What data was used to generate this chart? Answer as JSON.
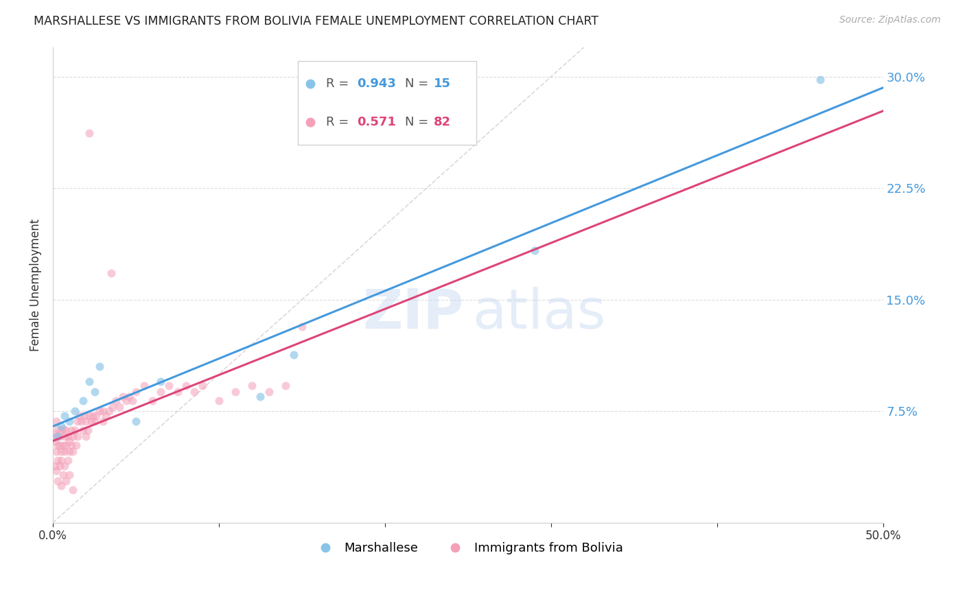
{
  "title": "MARSHALLESE VS IMMIGRANTS FROM BOLIVIA FEMALE UNEMPLOYMENT CORRELATION CHART",
  "source": "Source: ZipAtlas.com",
  "ylabel": "Female Unemployment",
  "watermark_zip": "ZIP",
  "watermark_atlas": "atlas",
  "xlim": [
    0,
    0.5
  ],
  "ylim": [
    0,
    0.32
  ],
  "color_blue": "#89c4e8",
  "color_pink": "#f4a0b8",
  "color_line_blue": "#4499dd",
  "color_line_pink": "#dd4477",
  "color_diag": "#ccbbbb",
  "legend_r1": "0.943",
  "legend_n1": "15",
  "legend_r2": "0.571",
  "legend_n2": "82",
  "marsh_x": [
    0.003,
    0.005,
    0.007,
    0.01,
    0.013,
    0.018,
    0.022,
    0.025,
    0.028,
    0.05,
    0.065,
    0.125,
    0.145,
    0.29,
    0.462
  ],
  "marsh_y": [
    0.058,
    0.065,
    0.072,
    0.068,
    0.075,
    0.082,
    0.095,
    0.088,
    0.105,
    0.068,
    0.095,
    0.085,
    0.113,
    0.183,
    0.298
  ],
  "boli_x": [
    0.001,
    0.001,
    0.002,
    0.002,
    0.002,
    0.003,
    0.003,
    0.003,
    0.004,
    0.004,
    0.005,
    0.005,
    0.005,
    0.006,
    0.006,
    0.007,
    0.007,
    0.008,
    0.008,
    0.009,
    0.009,
    0.01,
    0.01,
    0.011,
    0.011,
    0.012,
    0.012,
    0.013,
    0.014,
    0.015,
    0.015,
    0.016,
    0.017,
    0.018,
    0.019,
    0.02,
    0.02,
    0.021,
    0.022,
    0.023,
    0.024,
    0.025,
    0.026,
    0.028,
    0.03,
    0.03,
    0.032,
    0.034,
    0.036,
    0.038,
    0.04,
    0.042,
    0.044,
    0.046,
    0.048,
    0.05,
    0.055,
    0.06,
    0.065,
    0.07,
    0.075,
    0.08,
    0.085,
    0.09,
    0.1,
    0.11,
    0.12,
    0.13,
    0.14,
    0.15,
    0.001,
    0.002,
    0.003,
    0.004,
    0.005,
    0.006,
    0.007,
    0.008,
    0.01,
    0.012,
    0.022,
    0.035
  ],
  "boli_y": [
    0.055,
    0.06,
    0.048,
    0.058,
    0.068,
    0.042,
    0.052,
    0.063,
    0.052,
    0.058,
    0.042,
    0.048,
    0.062,
    0.052,
    0.063,
    0.048,
    0.058,
    0.052,
    0.062,
    0.042,
    0.058,
    0.048,
    0.055,
    0.052,
    0.062,
    0.048,
    0.058,
    0.062,
    0.052,
    0.058,
    0.068,
    0.072,
    0.068,
    0.062,
    0.072,
    0.058,
    0.068,
    0.062,
    0.072,
    0.068,
    0.072,
    0.068,
    0.072,
    0.075,
    0.068,
    0.075,
    0.072,
    0.075,
    0.078,
    0.082,
    0.078,
    0.085,
    0.082,
    0.085,
    0.082,
    0.088,
    0.092,
    0.082,
    0.088,
    0.092,
    0.088,
    0.092,
    0.088,
    0.092,
    0.082,
    0.088,
    0.092,
    0.088,
    0.092,
    0.132,
    0.038,
    0.035,
    0.028,
    0.038,
    0.025,
    0.032,
    0.038,
    0.028,
    0.032,
    0.022,
    0.262,
    0.168
  ]
}
